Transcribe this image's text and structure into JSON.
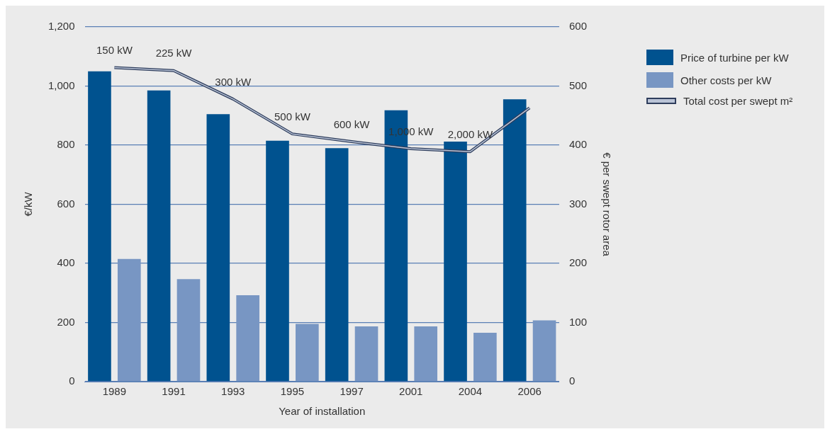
{
  "chart_data": {
    "type": "bar",
    "xlabel": "Year of installation",
    "ylabel": "€/kW",
    "y2label": "€ per swept rotor area",
    "categories": [
      "1989",
      "1991",
      "1993",
      "1995",
      "1997",
      "2001",
      "2004",
      "2006"
    ],
    "series": [
      {
        "name": "Price of turbine per kW",
        "color": "#00528f",
        "values": [
          1050,
          985,
          905,
          815,
          790,
          918,
          812,
          955
        ]
      },
      {
        "name": "Other costs per kW",
        "color": "#7896c3",
        "values": [
          415,
          347,
          292,
          195,
          187,
          187,
          165,
          207
        ]
      },
      {
        "name": "Total cost per swept m²",
        "type": "line",
        "axis": "y2",
        "color": "#2e3d5c",
        "values": [
          531,
          526,
          478,
          419,
          406,
          394,
          389,
          463
        ]
      }
    ],
    "ylim": [
      0,
      1200
    ],
    "yticks": [
      0,
      200,
      400,
      600,
      800,
      {
        "value": 1000,
        "label": "1,000"
      },
      {
        "value": 1200,
        "label": "1,200"
      }
    ],
    "y2lim": [
      0,
      600
    ],
    "y2ticks": [
      0,
      100,
      200,
      300,
      400,
      500,
      600
    ],
    "grid": "y",
    "legend": "right",
    "marker": "none",
    "annotations": [
      "150 kW",
      "225 kW",
      "300 kW",
      "500 kW",
      "600 kW",
      "1,000 kW",
      "2,000 kW"
    ]
  }
}
